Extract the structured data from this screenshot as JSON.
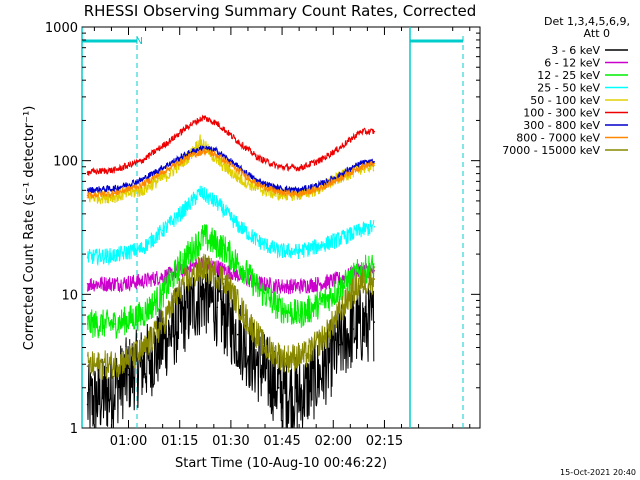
{
  "chart_data": {
    "type": "line",
    "title": "RHESSI Observing Summary Count Rates, Corrected",
    "xlabel": "Start Time (10-Aug-10 00:46:22)",
    "ylabel": "Corrected Count Rate (s⁻¹ detector⁻¹)",
    "yscale": "log",
    "xlim_minutes": [
      46.37,
      163.0
    ],
    "ylim": [
      1,
      1000
    ],
    "x_ticks": [
      {
        "label": "01:00",
        "minute": 60
      },
      {
        "label": "01:15",
        "minute": 75
      },
      {
        "label": "01:30",
        "minute": 90
      },
      {
        "label": "01:45",
        "minute": 105
      },
      {
        "label": "02:00",
        "minute": 120
      },
      {
        "label": "02:15",
        "minute": 135
      }
    ],
    "y_ticks": [
      {
        "label": "1",
        "value": 1
      },
      {
        "label": "10",
        "value": 10
      },
      {
        "label": "100",
        "value": 100
      },
      {
        "label": "1000",
        "value": 1000
      }
    ],
    "legend": {
      "placement": "right",
      "header_line1": "Det 1,3,4,5,6,9,",
      "header_line2": "Att 0"
    },
    "series": [
      {
        "name": "3 - 6 keV",
        "color": "#000000",
        "points": [
          [
            48,
            1.5
          ],
          [
            54,
            1.8
          ],
          [
            60,
            2.5
          ],
          [
            66,
            3.2
          ],
          [
            72,
            5
          ],
          [
            78,
            8
          ],
          [
            82,
            10
          ],
          [
            86,
            8
          ],
          [
            92,
            5
          ],
          [
            98,
            3
          ],
          [
            104,
            2
          ],
          [
            110,
            1.7
          ],
          [
            116,
            2.5
          ],
          [
            122,
            4.2
          ],
          [
            126,
            5.5
          ],
          [
            130,
            6
          ],
          [
            132,
            6.2
          ]
        ]
      },
      {
        "name": "6 - 12 keV",
        "color": "#cc00cc",
        "points": [
          [
            48,
            12
          ],
          [
            56,
            12
          ],
          [
            64,
            12.5
          ],
          [
            72,
            14
          ],
          [
            78,
            16
          ],
          [
            82,
            17
          ],
          [
            86,
            16
          ],
          [
            92,
            14
          ],
          [
            98,
            12
          ],
          [
            104,
            11.5
          ],
          [
            110,
            11.5
          ],
          [
            116,
            12
          ],
          [
            122,
            13
          ],
          [
            128,
            15
          ],
          [
            132,
            15
          ]
        ]
      },
      {
        "name": "12 - 25 keV",
        "color": "#00ee00",
        "points": [
          [
            48,
            6
          ],
          [
            56,
            6
          ],
          [
            64,
            7
          ],
          [
            70,
            10
          ],
          [
            76,
            18
          ],
          [
            82,
            27
          ],
          [
            88,
            22
          ],
          [
            94,
            15
          ],
          [
            98,
            11
          ],
          [
            104,
            8
          ],
          [
            110,
            7
          ],
          [
            116,
            8.5
          ],
          [
            122,
            11
          ],
          [
            128,
            15
          ],
          [
            132,
            16
          ]
        ]
      },
      {
        "name": "25 - 50 keV",
        "color": "#00ffff",
        "points": [
          [
            48,
            19
          ],
          [
            56,
            19.5
          ],
          [
            64,
            22
          ],
          [
            70,
            30
          ],
          [
            76,
            42
          ],
          [
            81,
            58
          ],
          [
            86,
            48
          ],
          [
            92,
            33
          ],
          [
            98,
            25
          ],
          [
            104,
            21
          ],
          [
            110,
            21
          ],
          [
            116,
            23
          ],
          [
            122,
            26
          ],
          [
            128,
            30
          ],
          [
            132,
            32
          ]
        ]
      },
      {
        "name": "50 - 100 keV",
        "color": "#e0d000",
        "points": [
          [
            48,
            53
          ],
          [
            56,
            54
          ],
          [
            64,
            60
          ],
          [
            72,
            80
          ],
          [
            78,
            110
          ],
          [
            81,
            140
          ],
          [
            86,
            100
          ],
          [
            92,
            75
          ],
          [
            98,
            62
          ],
          [
            104,
            56
          ],
          [
            110,
            56
          ],
          [
            116,
            62
          ],
          [
            122,
            75
          ],
          [
            128,
            88
          ],
          [
            132,
            92
          ]
        ]
      },
      {
        "name": "100 - 300 keV",
        "color": "#ee0000",
        "points": [
          [
            48,
            82
          ],
          [
            56,
            85
          ],
          [
            64,
            100
          ],
          [
            72,
            140
          ],
          [
            78,
            185
          ],
          [
            82,
            210
          ],
          [
            86,
            190
          ],
          [
            92,
            140
          ],
          [
            98,
            105
          ],
          [
            104,
            90
          ],
          [
            110,
            88
          ],
          [
            116,
            100
          ],
          [
            122,
            125
          ],
          [
            128,
            165
          ],
          [
            132,
            165
          ]
        ]
      },
      {
        "name": "300 - 800 keV",
        "color": "#0000cc",
        "points": [
          [
            48,
            60
          ],
          [
            56,
            62
          ],
          [
            64,
            72
          ],
          [
            72,
            95
          ],
          [
            78,
            115
          ],
          [
            82,
            125
          ],
          [
            86,
            118
          ],
          [
            92,
            90
          ],
          [
            98,
            70
          ],
          [
            104,
            62
          ],
          [
            110,
            60
          ],
          [
            116,
            66
          ],
          [
            122,
            78
          ],
          [
            128,
            95
          ],
          [
            132,
            98
          ]
        ]
      },
      {
        "name": "800 - 7000 keV",
        "color": "#ff8800",
        "points": [
          [
            48,
            55
          ],
          [
            56,
            57
          ],
          [
            64,
            66
          ],
          [
            72,
            88
          ],
          [
            78,
            108
          ],
          [
            82,
            118
          ],
          [
            86,
            110
          ],
          [
            92,
            85
          ],
          [
            98,
            66
          ],
          [
            104,
            58
          ],
          [
            110,
            56
          ],
          [
            116,
            62
          ],
          [
            122,
            74
          ],
          [
            128,
            90
          ],
          [
            132,
            95
          ]
        ]
      },
      {
        "name": "7000 - 15000 keV",
        "color": "#888800",
        "points": [
          [
            48,
            2.9
          ],
          [
            56,
            3
          ],
          [
            64,
            3.7
          ],
          [
            70,
            6
          ],
          [
            76,
            12
          ],
          [
            82,
            16
          ],
          [
            88,
            13
          ],
          [
            94,
            7
          ],
          [
            100,
            4
          ],
          [
            106,
            3.3
          ],
          [
            112,
            3.5
          ],
          [
            118,
            5
          ],
          [
            124,
            9
          ],
          [
            128,
            12
          ],
          [
            132,
            13
          ]
        ]
      }
    ],
    "annotations": [
      {
        "text": "N",
        "minute": 60,
        "value": 800
      }
    ]
  },
  "footer": {
    "timestamp": "15-Oct-2021 20:40"
  }
}
